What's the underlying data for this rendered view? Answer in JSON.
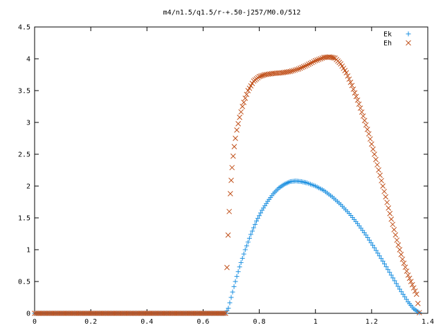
{
  "chart_data": {
    "type": "scatter",
    "title": "m4/n1.5/q1.5/r-+.50-j257/M0.0/512",
    "xlabel": "",
    "ylabel": "",
    "xlim": [
      0,
      1.4
    ],
    "ylim": [
      0,
      4.5
    ],
    "x_ticks": [
      "0",
      "0.2",
      "0.4",
      "0.6",
      "0.8",
      "1",
      "1.2",
      "1.4"
    ],
    "y_ticks": [
      "0",
      "0.5",
      "1",
      "1.5",
      "2",
      "2.5",
      "3",
      "3.5",
      "4",
      "4.5"
    ],
    "x_tick_values": [
      0,
      0.2,
      0.4,
      0.6,
      0.8,
      1.0,
      1.2,
      1.4
    ],
    "y_tick_values": [
      0,
      0.5,
      1,
      1.5,
      2,
      2.5,
      3,
      3.5,
      4,
      4.5
    ],
    "grid": false,
    "legend_position": "top-right",
    "series": [
      {
        "name": "Ek",
        "marker": "plus",
        "color": "#1a8fe0",
        "points": [
          [
            0.0,
            0.0
          ],
          [
            0.1,
            0.0
          ],
          [
            0.2,
            0.0
          ],
          [
            0.3,
            0.0
          ],
          [
            0.4,
            0.0
          ],
          [
            0.5,
            0.0
          ],
          [
            0.6,
            0.0
          ],
          [
            0.68,
            0.0
          ],
          [
            0.69,
            0.08
          ],
          [
            0.7,
            0.25
          ],
          [
            0.71,
            0.42
          ],
          [
            0.72,
            0.58
          ],
          [
            0.73,
            0.73
          ],
          [
            0.75,
            1.0
          ],
          [
            0.77,
            1.24
          ],
          [
            0.79,
            1.45
          ],
          [
            0.81,
            1.62
          ],
          [
            0.83,
            1.76
          ],
          [
            0.85,
            1.88
          ],
          [
            0.87,
            1.97
          ],
          [
            0.89,
            2.03
          ],
          [
            0.91,
            2.07
          ],
          [
            0.93,
            2.08
          ],
          [
            0.95,
            2.07
          ],
          [
            0.97,
            2.05
          ],
          [
            1.0,
            2.0
          ],
          [
            1.03,
            1.93
          ],
          [
            1.06,
            1.83
          ],
          [
            1.09,
            1.71
          ],
          [
            1.12,
            1.57
          ],
          [
            1.15,
            1.41
          ],
          [
            1.18,
            1.23
          ],
          [
            1.21,
            1.03
          ],
          [
            1.24,
            0.82
          ],
          [
            1.27,
            0.6
          ],
          [
            1.3,
            0.38
          ],
          [
            1.33,
            0.18
          ],
          [
            1.35,
            0.07
          ],
          [
            1.37,
            0.01
          ]
        ]
      },
      {
        "name": "Eh",
        "marker": "cross",
        "color": "#c0501a",
        "points": [
          [
            0.0,
            0.0
          ],
          [
            0.1,
            0.0
          ],
          [
            0.2,
            0.0
          ],
          [
            0.3,
            0.0
          ],
          [
            0.4,
            0.0
          ],
          [
            0.5,
            0.0
          ],
          [
            0.6,
            0.0
          ],
          [
            0.68,
            0.0
          ],
          [
            0.685,
            0.72
          ],
          [
            0.689,
            1.23
          ],
          [
            0.693,
            1.6
          ],
          [
            0.697,
            1.88
          ],
          [
            0.7,
            2.09
          ],
          [
            0.703,
            2.29
          ],
          [
            0.707,
            2.47
          ],
          [
            0.711,
            2.62
          ],
          [
            0.715,
            2.75
          ],
          [
            0.72,
            2.88
          ],
          [
            0.73,
            3.08
          ],
          [
            0.74,
            3.25
          ],
          [
            0.75,
            3.38
          ],
          [
            0.76,
            3.5
          ],
          [
            0.78,
            3.65
          ],
          [
            0.8,
            3.72
          ],
          [
            0.82,
            3.75
          ],
          [
            0.85,
            3.77
          ],
          [
            0.88,
            3.78
          ],
          [
            0.91,
            3.8
          ],
          [
            0.94,
            3.84
          ],
          [
            0.97,
            3.9
          ],
          [
            1.0,
            3.97
          ],
          [
            1.03,
            4.02
          ],
          [
            1.05,
            4.03
          ],
          [
            1.07,
            4.01
          ],
          [
            1.09,
            3.92
          ],
          [
            1.11,
            3.78
          ],
          [
            1.13,
            3.58
          ],
          [
            1.15,
            3.35
          ],
          [
            1.17,
            3.1
          ],
          [
            1.19,
            2.82
          ],
          [
            1.21,
            2.5
          ],
          [
            1.23,
            2.17
          ],
          [
            1.25,
            1.83
          ],
          [
            1.27,
            1.48
          ],
          [
            1.29,
            1.15
          ],
          [
            1.31,
            0.85
          ],
          [
            1.33,
            0.6
          ],
          [
            1.35,
            0.4
          ],
          [
            1.36,
            0.3
          ],
          [
            1.37,
            0.01
          ]
        ]
      }
    ]
  }
}
